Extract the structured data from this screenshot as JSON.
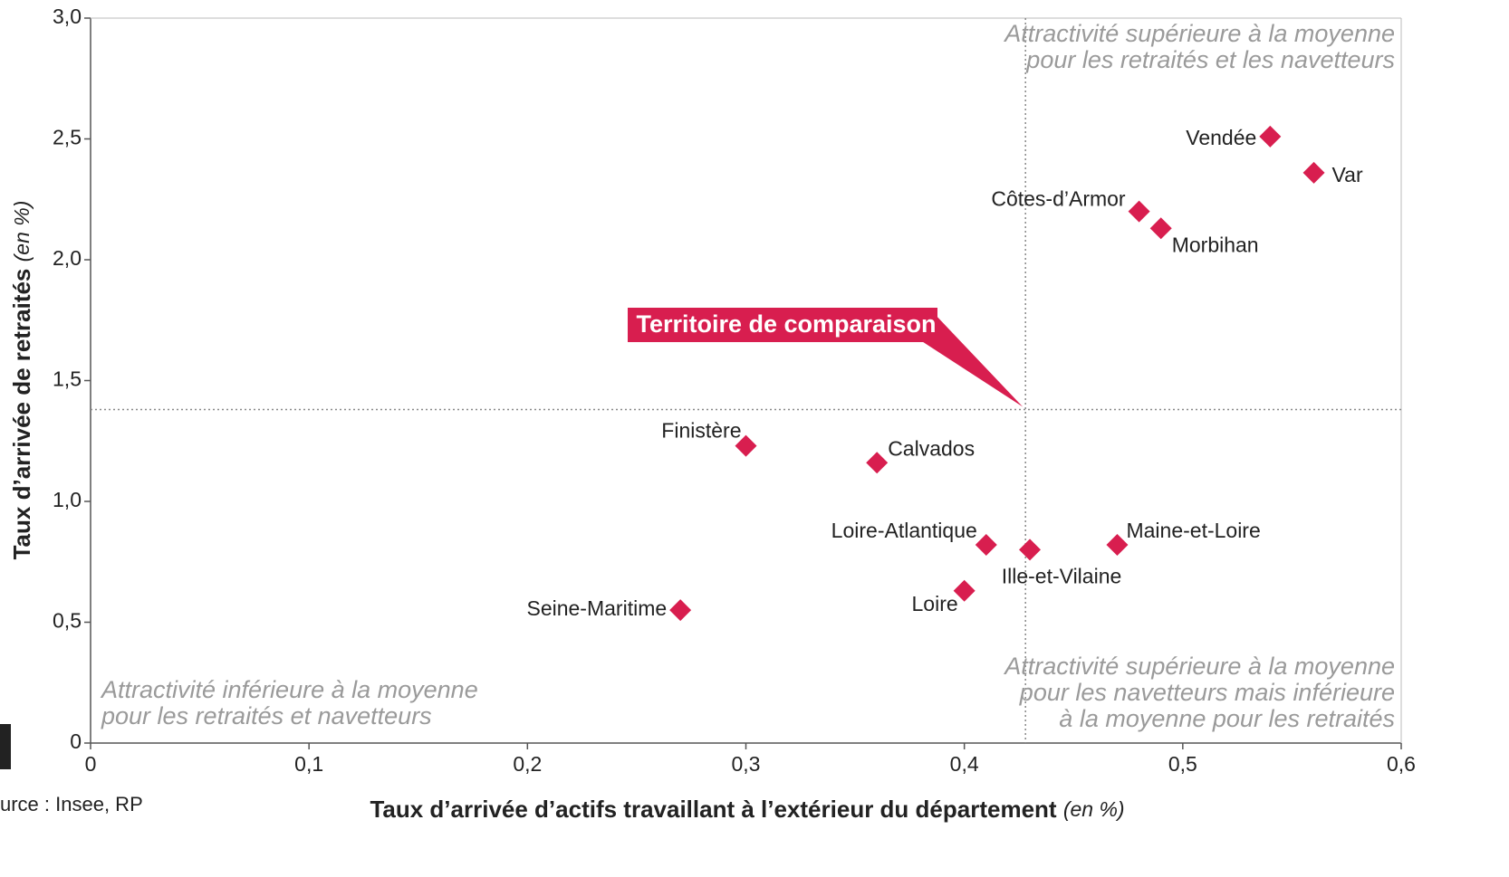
{
  "chart_data": {
    "type": "scatter",
    "x_label": "Taux d’arrivée d’actifs travaillant à l’extérieur du département",
    "x_label_unit": "(en %)",
    "y_label": "Taux d’arrivée de retraités",
    "y_label_unit": "(en %)",
    "labels": [
      "Vendée",
      "Var",
      "Côtes-d’Armor",
      "Morbihan",
      "Finistère",
      "Calvados",
      "Loire-Atlantique",
      "Ille-et-Vilaine",
      "Maine-et-Loire",
      "Loire",
      "Seine-Maritime"
    ],
    "x": [
      0.54,
      0.56,
      0.48,
      0.49,
      0.3,
      0.36,
      0.41,
      0.43,
      0.47,
      0.4,
      0.27
    ],
    "values": [
      2.51,
      2.36,
      2.2,
      2.13,
      1.23,
      1.16,
      0.82,
      0.8,
      0.82,
      0.63,
      0.55
    ],
    "color": "#d81e4f",
    "xlim": [
      0,
      0.6
    ],
    "ylim": [
      0,
      3.0
    ],
    "xticks": [
      0,
      {
        "value": 0.1,
        "label": "0,1"
      },
      {
        "value": 0.2,
        "label": "0,2"
      },
      {
        "value": 0.3,
        "label": "0,3"
      },
      {
        "value": 0.4,
        "label": "0,4"
      },
      {
        "value": 0.5,
        "label": "0,5"
      },
      {
        "value": 0.6,
        "label": "0,6"
      }
    ],
    "yticks": [
      0,
      {
        "value": 0.5,
        "label": "0,5"
      },
      {
        "value": 1.0,
        "label": "1,0"
      },
      {
        "value": 1.5,
        "label": "1,5"
      },
      {
        "value": 2.0,
        "label": "2,0"
      },
      {
        "value": 2.5,
        "label": "2,5"
      },
      {
        "value": 3.0,
        "label": "3,0"
      }
    ],
    "reference_x": 0.428,
    "reference_y": 1.38,
    "reference_label": "Territoire de comparaison",
    "quadrant_top_right": [
      "Attractivité supérieure à la moyenne",
      "pour les retraités et les navetteurs"
    ],
    "quadrant_bottom_left": [
      "Attractivité inférieure à la moyenne",
      "pour les retraités et navetteurs"
    ],
    "quadrant_bottom_right": [
      "Attractivité supérieure à la moyenne",
      "pour les navetteurs mais inférieure",
      "à la moyenne pour les retraités"
    ],
    "source": "urce : Insee, RP"
  }
}
